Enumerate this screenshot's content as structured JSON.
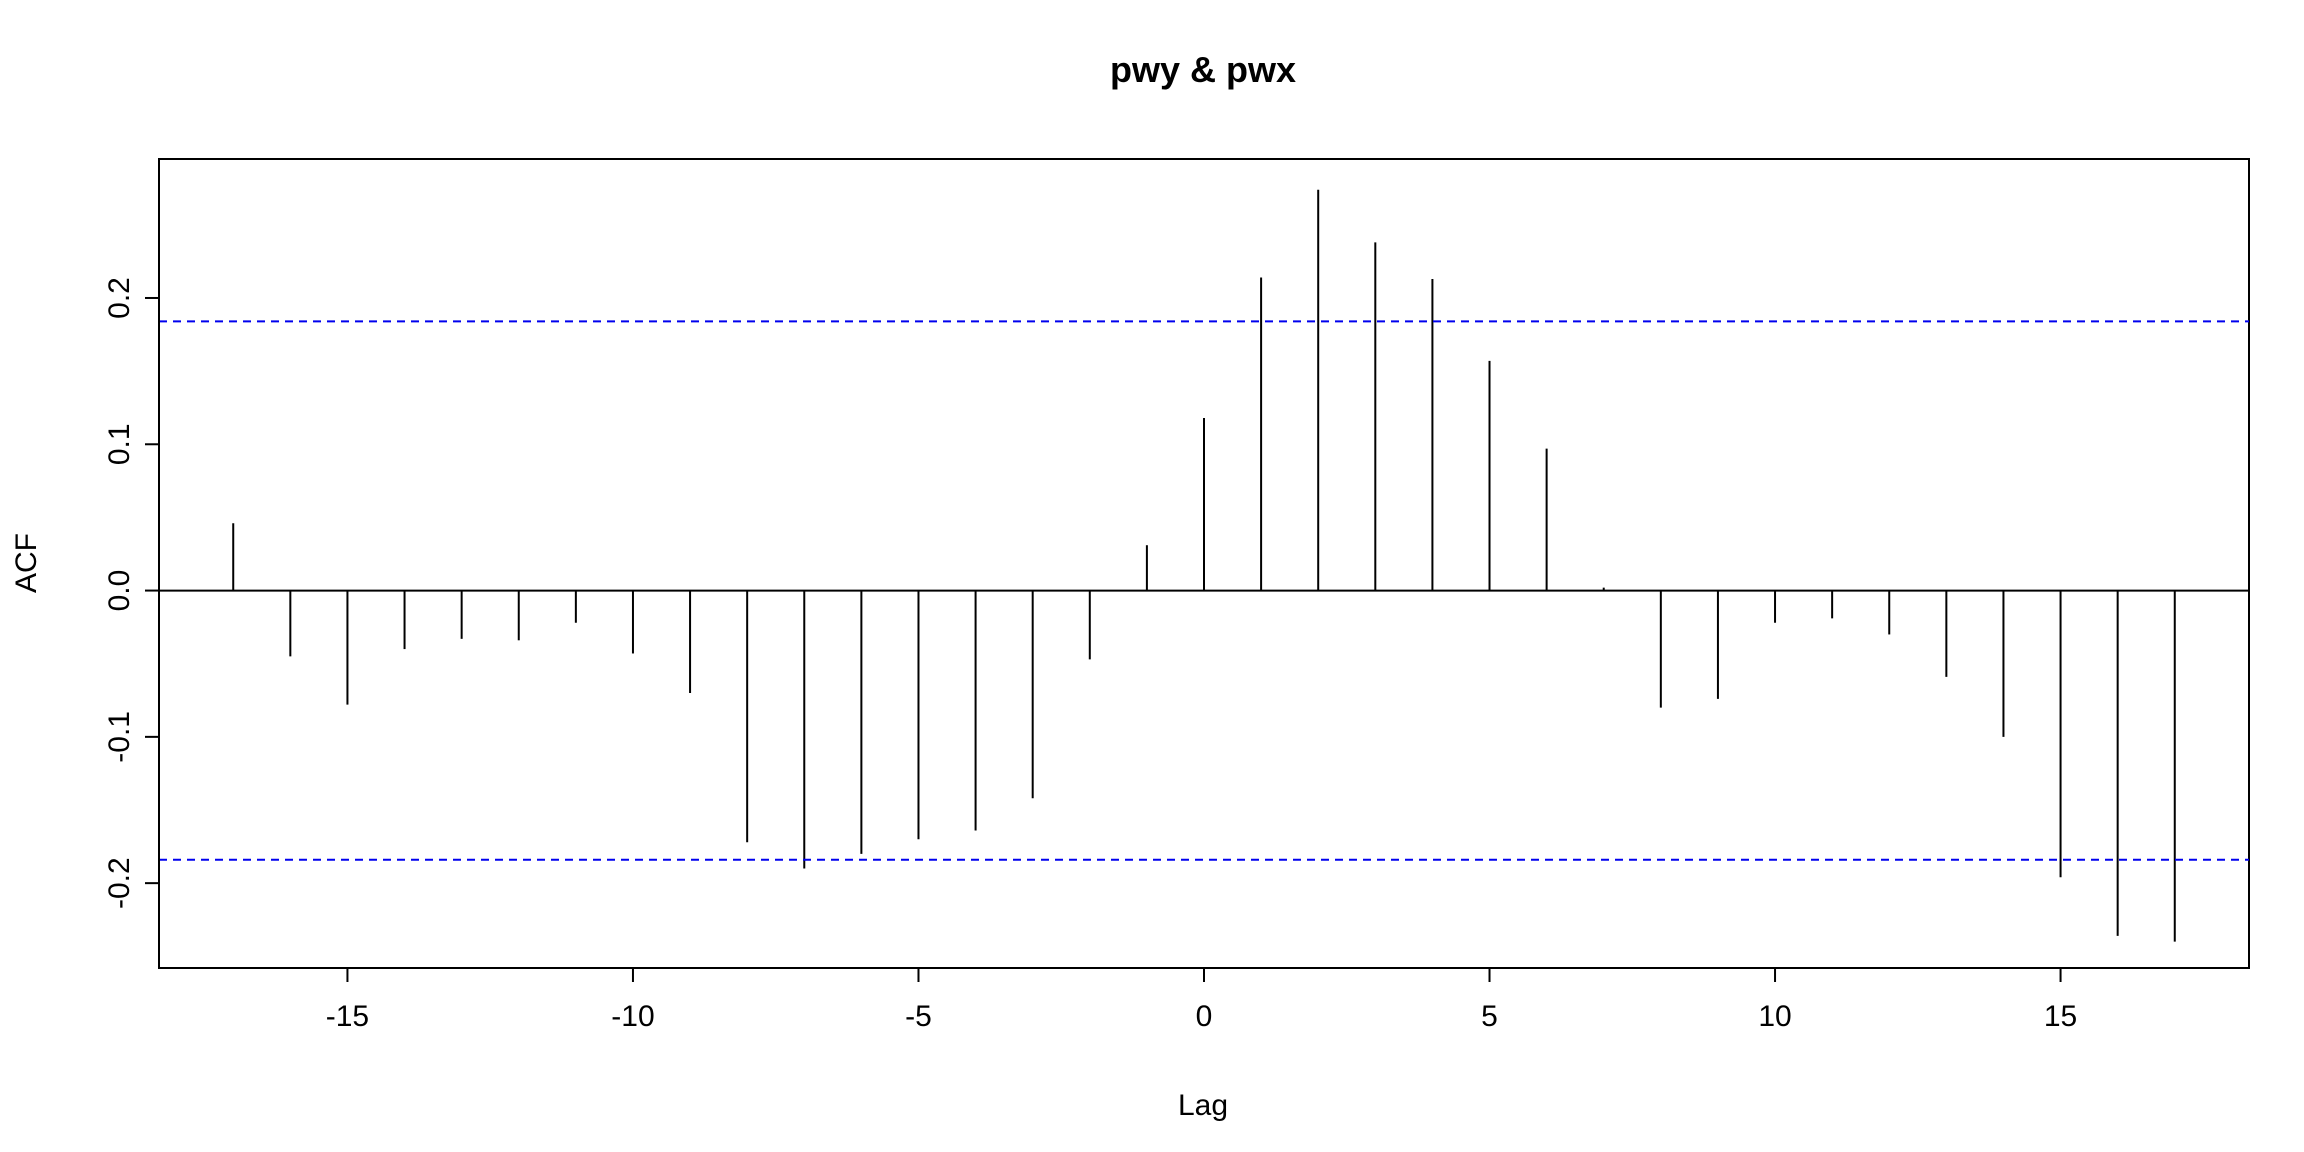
{
  "chart_data": {
    "type": "bar",
    "title": "pwy & pwx",
    "xlabel": "Lag",
    "ylabel": "ACF",
    "xlim": [
      -18.3,
      18.3
    ],
    "ylim": [
      -0.258,
      0.295
    ],
    "x_ticks": [
      -15,
      -10,
      -5,
      0,
      5,
      10,
      15
    ],
    "y_ticks": [
      -0.2,
      -0.1,
      0.0,
      0.1,
      0.2
    ],
    "y_tick_labels": [
      "-0.2",
      "-0.1",
      "0.0",
      "0.1",
      "0.2"
    ],
    "x_tick_labels": [
      "-15",
      "-10",
      "-5",
      "0",
      "5",
      "10",
      "15"
    ],
    "lags": [
      -17,
      -16,
      -15,
      -14,
      -13,
      -12,
      -11,
      -10,
      -9,
      -8,
      -7,
      -6,
      -5,
      -4,
      -3,
      -2,
      -1,
      0,
      1,
      2,
      3,
      4,
      5,
      6,
      7,
      8,
      9,
      10,
      11,
      12,
      13,
      14,
      15,
      16,
      17
    ],
    "values": [
      0.046,
      -0.045,
      -0.078,
      -0.04,
      -0.033,
      -0.034,
      -0.022,
      -0.043,
      -0.07,
      -0.172,
      -0.19,
      -0.18,
      -0.17,
      -0.164,
      -0.142,
      -0.047,
      0.031,
      0.118,
      0.214,
      0.274,
      0.238,
      0.213,
      0.157,
      0.097,
      0.002,
      -0.08,
      -0.074,
      -0.022,
      -0.019,
      -0.03,
      -0.059,
      -0.1,
      -0.196,
      -0.236,
      -0.24
    ],
    "confidence_band": [
      0.184,
      -0.184
    ],
    "band_color": "#0000ee",
    "bar_color": "#000000",
    "grid": false,
    "legend": "none"
  }
}
